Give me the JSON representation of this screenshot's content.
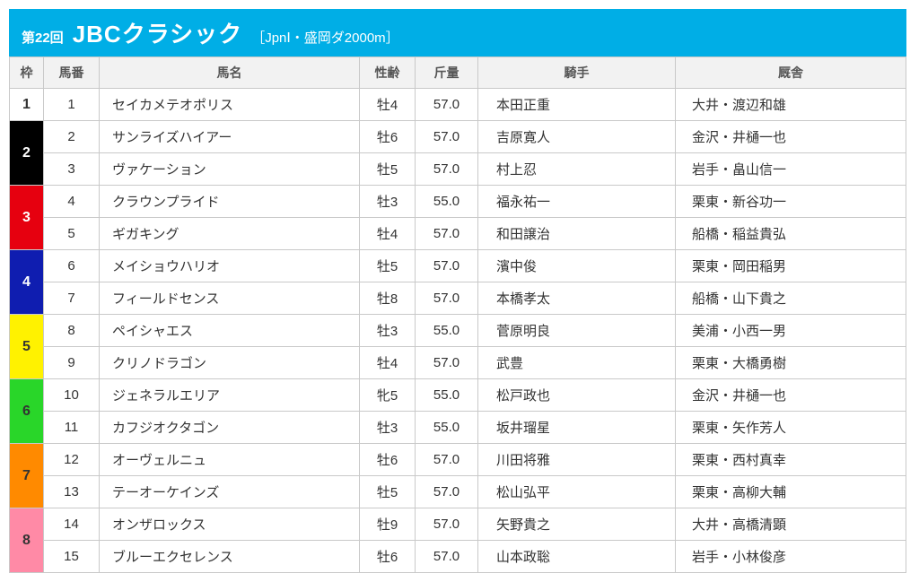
{
  "race": {
    "edition": "第22回",
    "title": "JBCクラシック",
    "meta": "［JpnⅠ・盛岡ダ2000m］"
  },
  "columns": {
    "waku": "枠",
    "num": "馬番",
    "name": "馬名",
    "age": "性齢",
    "weight": "斤量",
    "jockey": "騎手",
    "stable": "厩舎"
  },
  "waku_style": {
    "1": {
      "bg": "#ffffff",
      "fg": "#333333"
    },
    "2": {
      "bg": "#000000",
      "fg": "#ffffff"
    },
    "3": {
      "bg": "#e6000f",
      "fg": "#ffffff"
    },
    "4": {
      "bg": "#0f1db0",
      "fg": "#ffffff"
    },
    "5": {
      "bg": "#fff200",
      "fg": "#333333"
    },
    "6": {
      "bg": "#29d629",
      "fg": "#333333"
    },
    "7": {
      "bg": "#ff8a00",
      "fg": "#333333"
    },
    "8": {
      "bg": "#ff8aa6",
      "fg": "#333333"
    }
  },
  "entries": [
    {
      "waku": 1,
      "num": 1,
      "name": "セイカメテオポリス",
      "age": "牡4",
      "weight": "57.0",
      "jockey": "本田正重",
      "stable": "大井・渡辺和雄"
    },
    {
      "waku": 2,
      "num": 2,
      "name": "サンライズハイアー",
      "age": "牡6",
      "weight": "57.0",
      "jockey": "吉原寛人",
      "stable": "金沢・井樋一也"
    },
    {
      "waku": 2,
      "num": 3,
      "name": "ヴァケーション",
      "age": "牡5",
      "weight": "57.0",
      "jockey": "村上忍",
      "stable": "岩手・畠山信一"
    },
    {
      "waku": 3,
      "num": 4,
      "name": "クラウンプライド",
      "age": "牡3",
      "weight": "55.0",
      "jockey": "福永祐一",
      "stable": "栗東・新谷功一"
    },
    {
      "waku": 3,
      "num": 5,
      "name": "ギガキング",
      "age": "牡4",
      "weight": "57.0",
      "jockey": "和田譲治",
      "stable": "船橋・稲益貴弘"
    },
    {
      "waku": 4,
      "num": 6,
      "name": "メイショウハリオ",
      "age": "牡5",
      "weight": "57.0",
      "jockey": "濱中俊",
      "stable": "栗東・岡田稲男"
    },
    {
      "waku": 4,
      "num": 7,
      "name": "フィールドセンス",
      "age": "牡8",
      "weight": "57.0",
      "jockey": "本橋孝太",
      "stable": "船橋・山下貴之"
    },
    {
      "waku": 5,
      "num": 8,
      "name": "ペイシャエス",
      "age": "牡3",
      "weight": "55.0",
      "jockey": "菅原明良",
      "stable": "美浦・小西一男"
    },
    {
      "waku": 5,
      "num": 9,
      "name": "クリノドラゴン",
      "age": "牡4",
      "weight": "57.0",
      "jockey": "武豊",
      "stable": "栗東・大橋勇樹"
    },
    {
      "waku": 6,
      "num": 10,
      "name": "ジェネラルエリア",
      "age": "牝5",
      "weight": "55.0",
      "jockey": "松戸政也",
      "stable": "金沢・井樋一也"
    },
    {
      "waku": 6,
      "num": 11,
      "name": "カフジオクタゴン",
      "age": "牡3",
      "weight": "55.0",
      "jockey": "坂井瑠星",
      "stable": "栗東・矢作芳人"
    },
    {
      "waku": 7,
      "num": 12,
      "name": "オーヴェルニュ",
      "age": "牡6",
      "weight": "57.0",
      "jockey": "川田将雅",
      "stable": "栗東・西村真幸"
    },
    {
      "waku": 7,
      "num": 13,
      "name": "テーオーケインズ",
      "age": "牡5",
      "weight": "57.0",
      "jockey": "松山弘平",
      "stable": "栗東・高柳大輔"
    },
    {
      "waku": 8,
      "num": 14,
      "name": "オンザロックス",
      "age": "牡9",
      "weight": "57.0",
      "jockey": "矢野貴之",
      "stable": "大井・高橋清顕"
    },
    {
      "waku": 8,
      "num": 15,
      "name": "ブルーエクセレンス",
      "age": "牡6",
      "weight": "57.0",
      "jockey": "山本政聡",
      "stable": "岩手・小林俊彦"
    }
  ]
}
